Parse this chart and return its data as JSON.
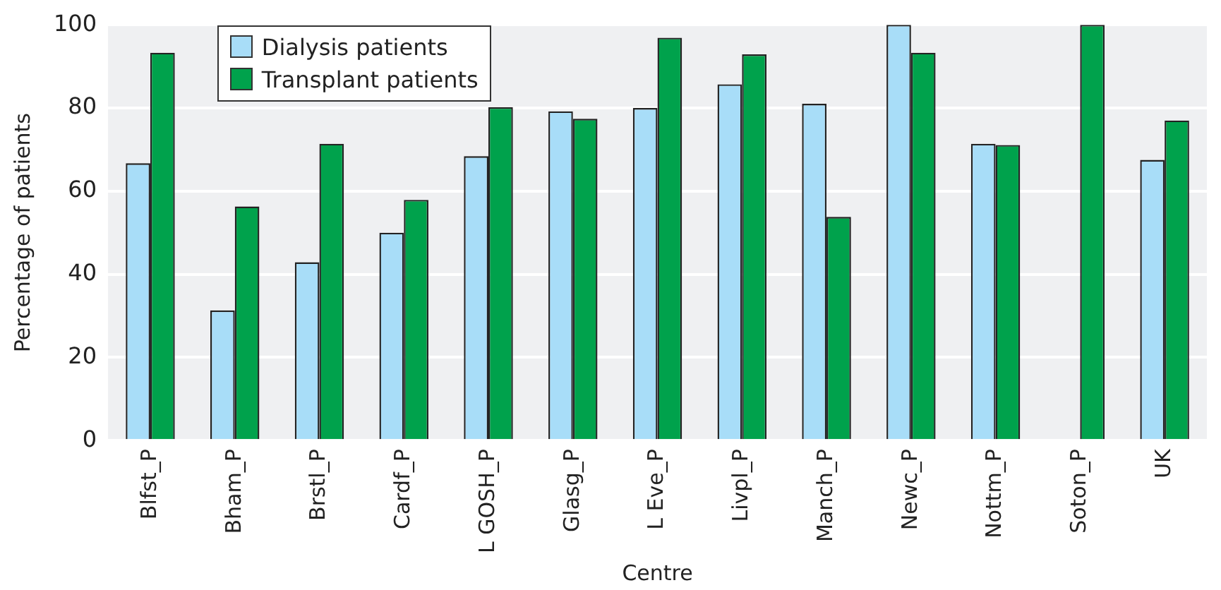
{
  "chart_data": {
    "type": "bar",
    "xlabel": "Centre",
    "ylabel": "Percentage of patients",
    "categories": [
      "Blfst_P",
      "Bham_P",
      "Brstl_P",
      "Cardf_P",
      "L GOSH_P",
      "Glasg_P",
      "L Eve_P",
      "Livpl_P",
      "Manch_P",
      "Newc_P",
      "Nottm_P",
      "Soton_P",
      "UK"
    ],
    "series": [
      {
        "name": "Dialysis patients",
        "color": "#a8ddf8",
        "values": [
          66.7,
          31.3,
          42.9,
          50,
          68.4,
          79.2,
          80,
          85.7,
          81,
          100,
          71.4,
          null,
          67.5
        ]
      },
      {
        "name": "Transplant patients",
        "color": "#00a24c",
        "values": [
          93.3,
          56.3,
          71.4,
          57.9,
          80.2,
          77.4,
          96.9,
          92.9,
          53.8,
          93.3,
          71.1,
          100,
          77
        ]
      }
    ],
    "ylim": [
      0,
      100
    ],
    "yticks": [
      0,
      20,
      40,
      60,
      80,
      100
    ],
    "grid": "y",
    "legend": "top left"
  }
}
